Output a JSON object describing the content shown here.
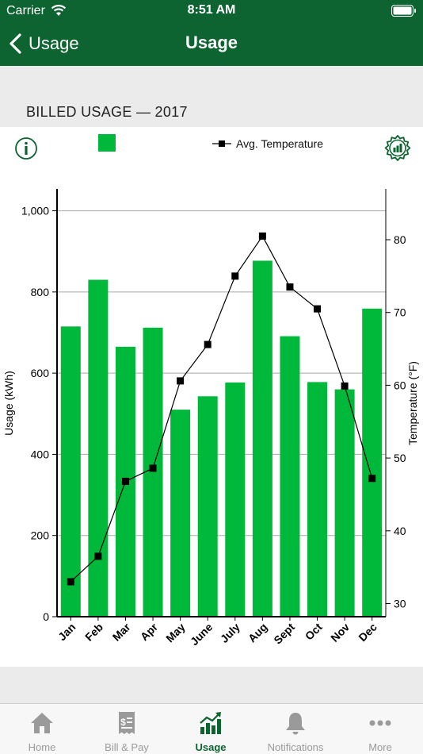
{
  "status_bar": {
    "carrier": "Carrier",
    "time": "8:51 AM"
  },
  "nav": {
    "back_label": "Usage",
    "title": "Usage"
  },
  "section_title": "BILLED USAGE — 2017",
  "legend": {
    "temperature_label": "Avg. Temperature"
  },
  "colors": {
    "brand": "#0d6431",
    "bar": "#00b93a",
    "line": "#000000"
  },
  "icons": {
    "info": "info-icon",
    "settings": "chart-settings-icon",
    "back": "chevron-left-icon"
  },
  "chart_data": {
    "type": "bar",
    "categories": [
      "Jan",
      "Feb",
      "Mar",
      "Apr",
      "May",
      "June",
      "July",
      "Aug",
      "Sept",
      "Oct",
      "Nov",
      "Dec"
    ],
    "series": [
      {
        "name": "",
        "type": "bar",
        "axis": "left",
        "values": [
          715,
          830,
          665,
          712,
          510,
          543,
          577,
          877,
          691,
          578,
          560,
          759
        ]
      },
      {
        "name": "Avg. Temperature",
        "type": "line",
        "axis": "right",
        "values": [
          33.0,
          36.5,
          46.8,
          48.6,
          60.6,
          65.6,
          75.0,
          80.5,
          73.5,
          70.5,
          59.9,
          47.2
        ]
      }
    ],
    "ylabel": "Usage (kWh)",
    "y2label": "Temperature (°F)",
    "ylim": [
      0,
      1000
    ],
    "y2lim": [
      30,
      80
    ],
    "yticks": [
      "0",
      "200",
      "400",
      "600",
      "800",
      "1,000"
    ],
    "yticks_values": [
      0,
      200,
      400,
      600,
      800,
      1000
    ],
    "y2ticks": [
      "30",
      "40",
      "50",
      "60",
      "70",
      "80"
    ],
    "y2ticks_values": [
      30,
      40,
      50,
      60,
      70,
      80
    ],
    "grid": true,
    "legend_position": "top"
  },
  "tabs": [
    {
      "label": "Home",
      "icon": "home-icon",
      "active": false
    },
    {
      "label": "Bill & Pay",
      "icon": "bill-icon",
      "active": false
    },
    {
      "label": "Usage",
      "icon": "usage-chart-icon",
      "active": true
    },
    {
      "label": "Notifications",
      "icon": "bell-icon",
      "active": false
    },
    {
      "label": "More",
      "icon": "more-icon",
      "active": false
    }
  ]
}
